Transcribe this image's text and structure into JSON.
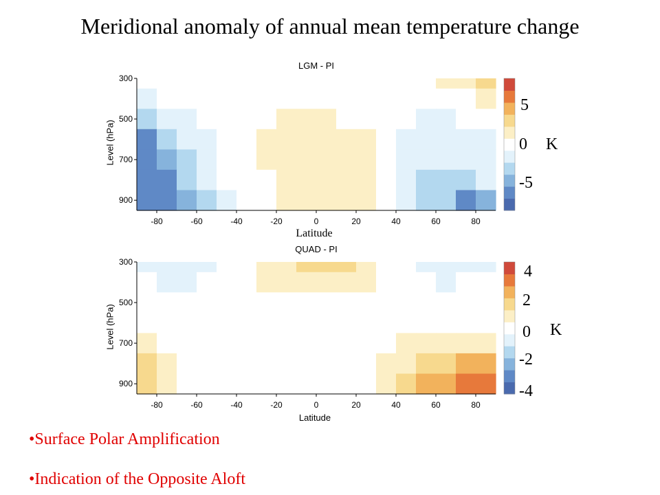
{
  "slide": {
    "title": "Meridional anomaly of annual mean temperature change",
    "bullets": [
      "•Surface Polar Amplification",
      "•Indication of the Opposite Aloft"
    ]
  },
  "colors": {
    "bullet_text": "#e00000",
    "colormap": [
      "#4a6aae",
      "#5f89c6",
      "#86b3dc",
      "#b3d8ef",
      "#e3f2fb",
      "#ffffff",
      "#fcefc6",
      "#f7d98e",
      "#f2b25c",
      "#e7793b",
      "#d04a3b"
    ]
  },
  "chart_data": [
    {
      "type": "heatmap",
      "title": "LGM - PI",
      "xlabel": "Latitude",
      "ylabel": "Level (hPa)",
      "x_ticks": [
        -80,
        -60,
        -40,
        -20,
        0,
        20,
        40,
        60,
        80
      ],
      "y_ticks": [
        300,
        500,
        700,
        900
      ],
      "xlim": [
        -90,
        90
      ],
      "ylim_hpa": [
        300,
        950
      ],
      "y_axis_inverted": true,
      "grid": false,
      "colorbar": {
        "range": [
          -8,
          8
        ],
        "ticks": [
          "5",
          "0",
          "-5"
        ],
        "unit": "K",
        "position": "right"
      },
      "x": [
        -85,
        -75,
        -65,
        -55,
        -45,
        -35,
        -25,
        -15,
        -5,
        5,
        15,
        25,
        35,
        45,
        55,
        65,
        75,
        85
      ],
      "y": [
        300,
        400,
        500,
        600,
        700,
        800,
        900
      ],
      "values": [
        [
          0,
          0,
          0,
          0,
          0,
          0,
          0.5,
          0.5,
          0,
          0,
          0,
          0,
          0,
          0,
          0.5,
          1,
          2,
          3
        ],
        [
          -1,
          -0.5,
          0,
          0,
          0,
          0,
          0.5,
          0.5,
          0.5,
          0.5,
          0.5,
          0.5,
          0,
          0,
          0,
          0,
          0.5,
          1
        ],
        [
          -3,
          -2,
          -1,
          0,
          0,
          0,
          0.5,
          1,
          1,
          1,
          0.5,
          0.5,
          0,
          -0.5,
          -1,
          -1,
          -0.5,
          0
        ],
        [
          -6,
          -4,
          -2,
          -1,
          0,
          0,
          1,
          1.5,
          1.5,
          1.5,
          1.5,
          1,
          0,
          -1.5,
          -2,
          -2,
          -1.5,
          -1
        ],
        [
          -6,
          -5,
          -3,
          -1,
          0,
          0,
          1,
          1.5,
          1.5,
          1.5,
          1.5,
          1,
          0,
          -1.5,
          -2,
          -2,
          -2,
          -1
        ],
        [
          -7,
          -6,
          -4,
          -2,
          0,
          0,
          0.5,
          1,
          1.5,
          2,
          2,
          1,
          0,
          -2,
          -2.5,
          -3,
          -3,
          -2
        ],
        [
          -7,
          -7,
          -5,
          -3,
          -1,
          0,
          0.5,
          1,
          1.5,
          2,
          2,
          1,
          0,
          -2,
          -3,
          -4,
          -6,
          -5
        ]
      ]
    },
    {
      "type": "heatmap",
      "title": "QUAD - PI",
      "xlabel": "Latitude",
      "ylabel": "Level (hPa)",
      "x_ticks": [
        -80,
        -60,
        -40,
        -20,
        0,
        20,
        40,
        60,
        80
      ],
      "y_ticks": [
        300,
        500,
        700,
        900
      ],
      "xlim": [
        -90,
        90
      ],
      "ylim_hpa": [
        300,
        950
      ],
      "y_axis_inverted": true,
      "grid": false,
      "colorbar": {
        "range": [
          -5,
          5
        ],
        "ticks": [
          "4",
          "2",
          "0",
          "-2",
          "-4"
        ],
        "unit": "K",
        "position": "right"
      },
      "x": [
        -85,
        -75,
        -65,
        -55,
        -45,
        -35,
        -25,
        -15,
        -5,
        5,
        15,
        25,
        35,
        45,
        55,
        65,
        75,
        85
      ],
      "y": [
        300,
        400,
        500,
        600,
        700,
        800,
        900
      ],
      "values": [
        [
          -1.5,
          -1.5,
          -1.5,
          -1,
          -0.5,
          0,
          0.5,
          1,
          1.5,
          1.5,
          1.5,
          0.5,
          0,
          -0.5,
          -1,
          -1.5,
          -1.5,
          -1.5
        ],
        [
          -0.5,
          -1,
          -1,
          -0.5,
          0,
          0,
          0.5,
          0.5,
          0.5,
          0.5,
          0.5,
          0.5,
          0,
          0,
          -0.5,
          -1,
          -0.5,
          -0.5
        ],
        [
          0,
          0,
          -0.5,
          0,
          0,
          0,
          0,
          0,
          0,
          0,
          0,
          0,
          0,
          0,
          0,
          0,
          0,
          0
        ],
        [
          0,
          0,
          0,
          0,
          0,
          0,
          0,
          0,
          0,
          0,
          0,
          0,
          0,
          0,
          0,
          0,
          0,
          0
        ],
        [
          1,
          0,
          0,
          0,
          0,
          0,
          0,
          0,
          0,
          0,
          0,
          0,
          0,
          0.5,
          0.5,
          1,
          0.5,
          0.5
        ],
        [
          1.5,
          0.5,
          0,
          0,
          0,
          0,
          0,
          0,
          0,
          0,
          0,
          0,
          0.5,
          1,
          1.5,
          2,
          2.5,
          2.5
        ],
        [
          2,
          1,
          0,
          0,
          0,
          0,
          0,
          0,
          0,
          0,
          0,
          0,
          0.5,
          1.5,
          2.5,
          3,
          4,
          4
        ]
      ]
    }
  ]
}
